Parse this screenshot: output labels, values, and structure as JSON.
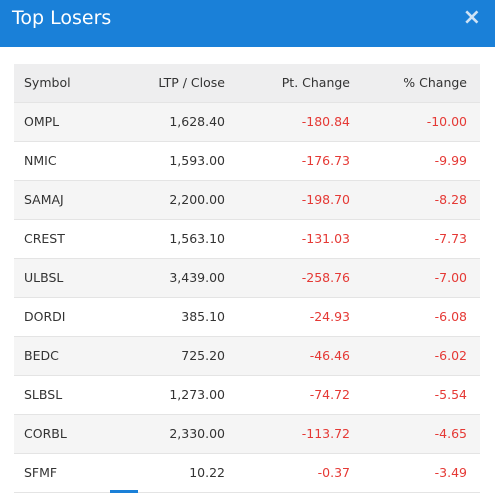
{
  "header": {
    "title": "Top Losers",
    "close": "×"
  },
  "table": {
    "columns": [
      "Symbol",
      "LTP / Close",
      "Pt. Change",
      "% Change"
    ],
    "rows": [
      [
        "OMPL",
        "1,628.40",
        "-180.84",
        "-10.00"
      ],
      [
        "NMIC",
        "1,593.00",
        "-176.73",
        "-9.99"
      ],
      [
        "SAMAJ",
        "2,200.00",
        "-198.70",
        "-8.28"
      ],
      [
        "CREST",
        "1,563.10",
        "-131.03",
        "-7.73"
      ],
      [
        "ULBSL",
        "3,439.00",
        "-258.76",
        "-7.00"
      ],
      [
        "DORDI",
        "385.10",
        "-24.93",
        "-6.08"
      ],
      [
        "BEDC",
        "725.20",
        "-46.46",
        "-6.02"
      ],
      [
        "SLBSL",
        "1,273.00",
        "-74.72",
        "-5.54"
      ],
      [
        "CORBL",
        "2,330.00",
        "-113.72",
        "-4.65"
      ],
      [
        "SFMF",
        "10.22",
        "-0.37",
        "-3.49"
      ]
    ]
  }
}
